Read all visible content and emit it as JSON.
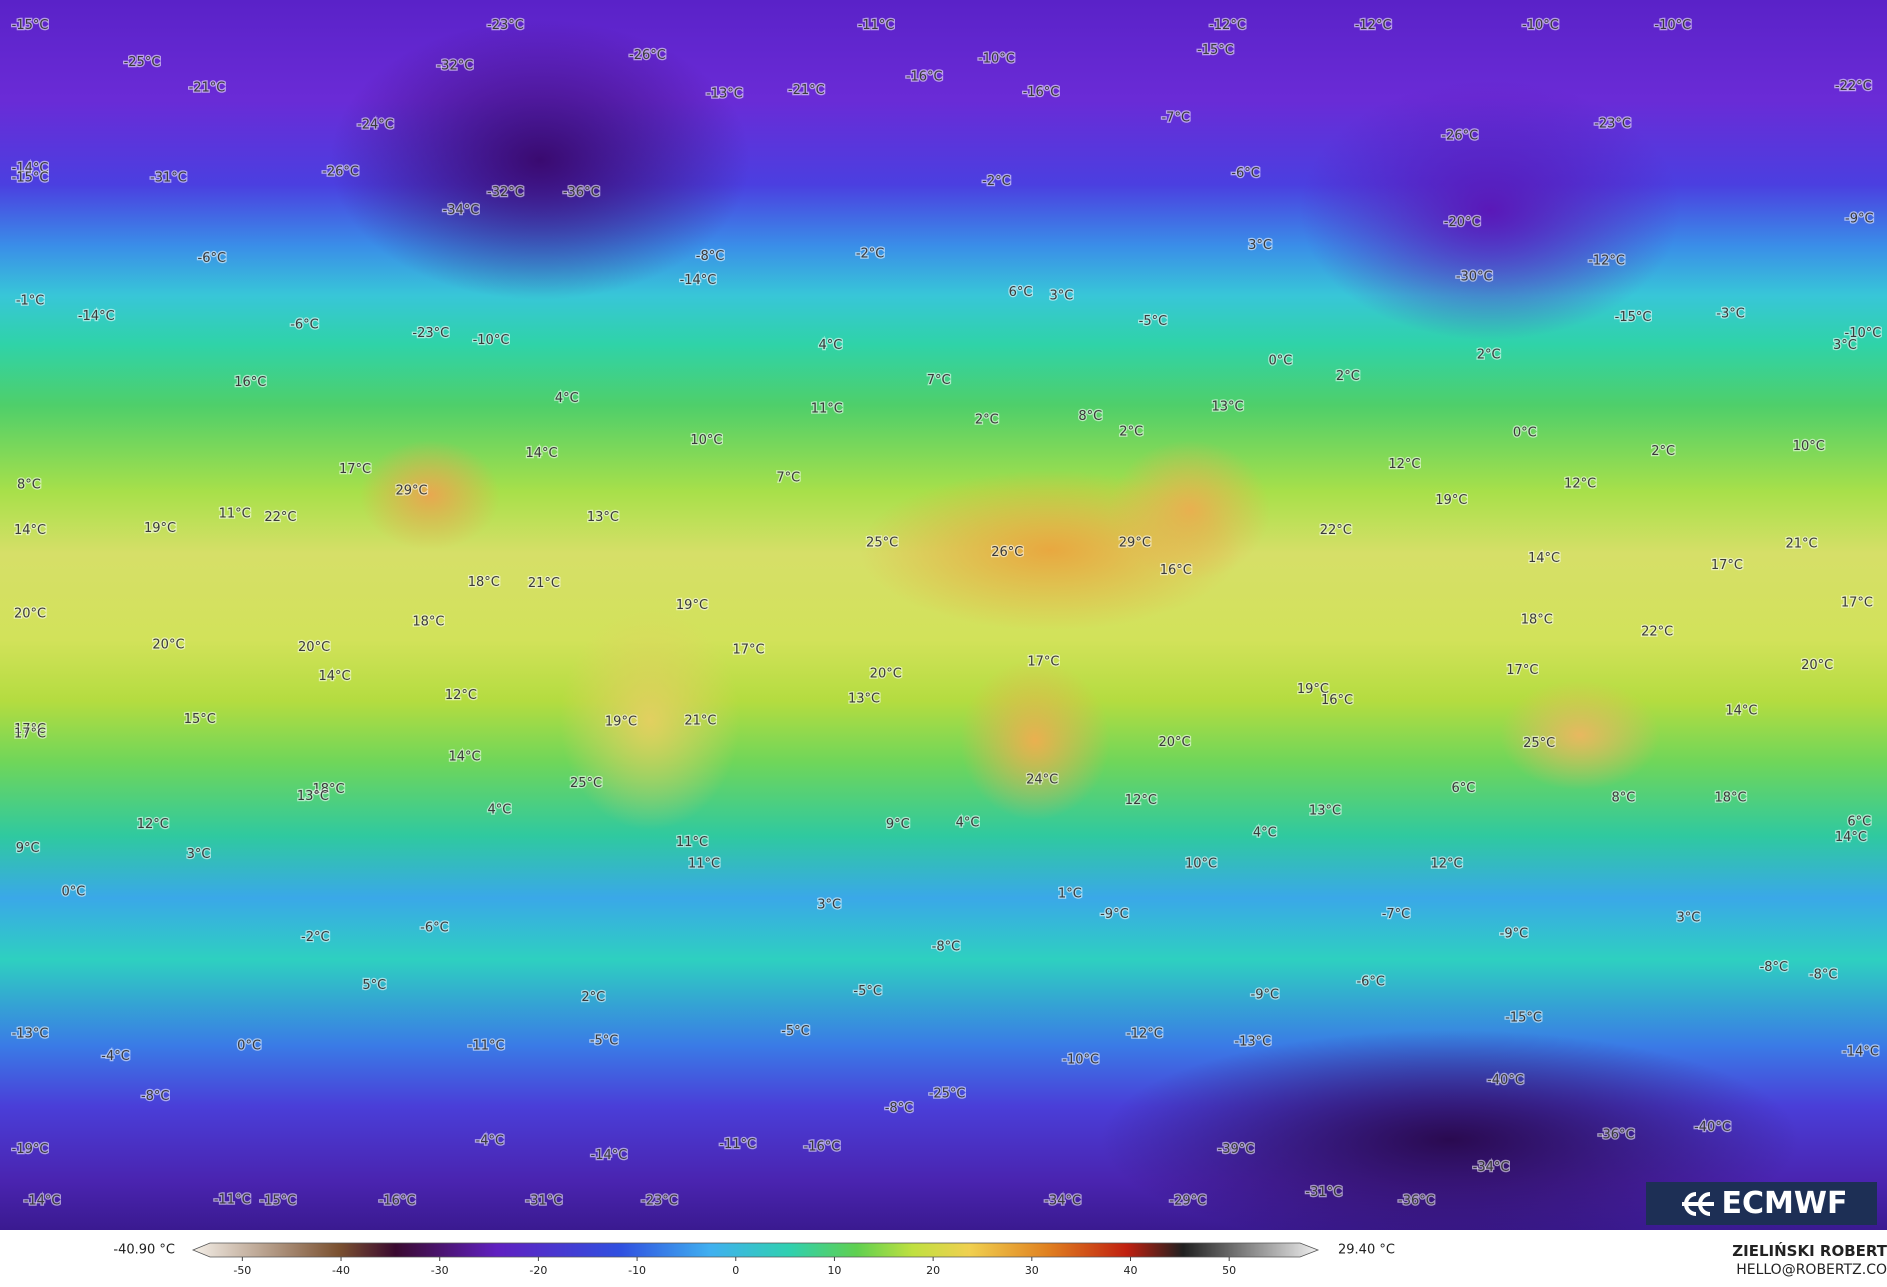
{
  "map": {
    "labels": [
      "-15°C",
      "-23°C",
      "-11°C",
      "-12°C",
      "-12°C",
      "-10°C",
      "-10°C",
      "-25°C",
      "-32°C",
      "-26°C",
      "-10°C",
      "-15°C",
      "-21°C",
      "-13°C",
      "-21°C",
      "-16°C",
      "-16°C",
      "-22°C",
      "-24°C",
      "-7°C",
      "-23°C",
      "-26°C",
      "-14°C",
      "-15°C",
      "-31°C",
      "-26°C",
      "-32°C",
      "-36°C",
      "-6°C",
      "-2°C",
      "-9°C",
      "-34°C",
      "-20°C",
      "3°C",
      "-6°C",
      "-8°C",
      "-2°C",
      "-12°C",
      "-14°C",
      "-30°C",
      "-1°C",
      "-14°C",
      "6°C",
      "3°C",
      "-6°C",
      "-23°C",
      "-10°C",
      "4°C",
      "-5°C",
      "-15°C",
      "-3°C",
      "-10°C",
      "3°C",
      "2°C",
      "0°C",
      "2°C",
      "16°C",
      "4°C",
      "7°C",
      "11°C",
      "13°C",
      "2°C",
      "8°C",
      "2°C",
      "0°C",
      "10°C",
      "14°C",
      "2°C",
      "10°C",
      "17°C",
      "12°C",
      "29°C",
      "7°C",
      "8°C",
      "12°C",
      "19°C",
      "11°C",
      "22°C",
      "13°C",
      "14°C",
      "19°C",
      "22°C",
      "25°C",
      "26°C",
      "29°C",
      "21°C",
      "14°C",
      "17°C",
      "16°C",
      "18°C",
      "21°C",
      "19°C",
      "20°C",
      "17°C",
      "18°C",
      "18°C",
      "22°C",
      "20°C",
      "20°C",
      "17°C",
      "17°C",
      "20°C",
      "20°C",
      "17°C",
      "14°C",
      "19°C",
      "16°C",
      "12°C",
      "13°C",
      "14°C",
      "15°C",
      "19°C",
      "21°C",
      "17°C",
      "17°C",
      "20°C",
      "25°C",
      "14°C",
      "25°C",
      "24°C",
      "18°C",
      "13°C",
      "6°C",
      "18°C",
      "8°C",
      "12°C",
      "4°C",
      "13°C",
      "12°C",
      "9°C",
      "4°C",
      "4°C",
      "14°C",
      "6°C",
      "11°C",
      "9°C",
      "3°C",
      "11°C",
      "10°C",
      "12°C",
      "0°C",
      "1°C",
      "3°C",
      "-7°C",
      "-9°C",
      "-9°C",
      "3°C",
      "-2°C",
      "-6°C",
      "-8°C",
      "-8°C",
      "-8°C",
      "5°C",
      "-5°C",
      "-9°C",
      "-6°C",
      "2°C",
      "-15°C",
      "-13°C",
      "-5°C",
      "-12°C",
      "-13°C",
      "-5°C",
      "0°C",
      "-11°C",
      "-4°C",
      "-10°C",
      "-14°C",
      "-40°C",
      "-8°C",
      "-25°C",
      "-8°C",
      "-36°C",
      "-40°C",
      "-4°C",
      "-11°C",
      "-16°C",
      "-19°C",
      "-39°C",
      "-14°C",
      "-34°C",
      "-31°C",
      "-14°C",
      "-11°C",
      "-15°C",
      "-16°C",
      "-31°C",
      "-23°C",
      "-34°C",
      "-29°C",
      "-36°C"
    ]
  },
  "logo": "ECMWF",
  "credits": {
    "name": "ZIELIŃSKI ROBERT",
    "email": "HELLO@ROBERTZ.CO"
  },
  "colorbar": {
    "min_label": "-40.90 °C",
    "max_label": "29.40 °C",
    "xlim": [
      -55,
      59
    ],
    "ticks": [
      -50,
      -40,
      -30,
      -20,
      -10,
      0,
      10,
      20,
      30,
      40,
      50
    ]
  }
}
